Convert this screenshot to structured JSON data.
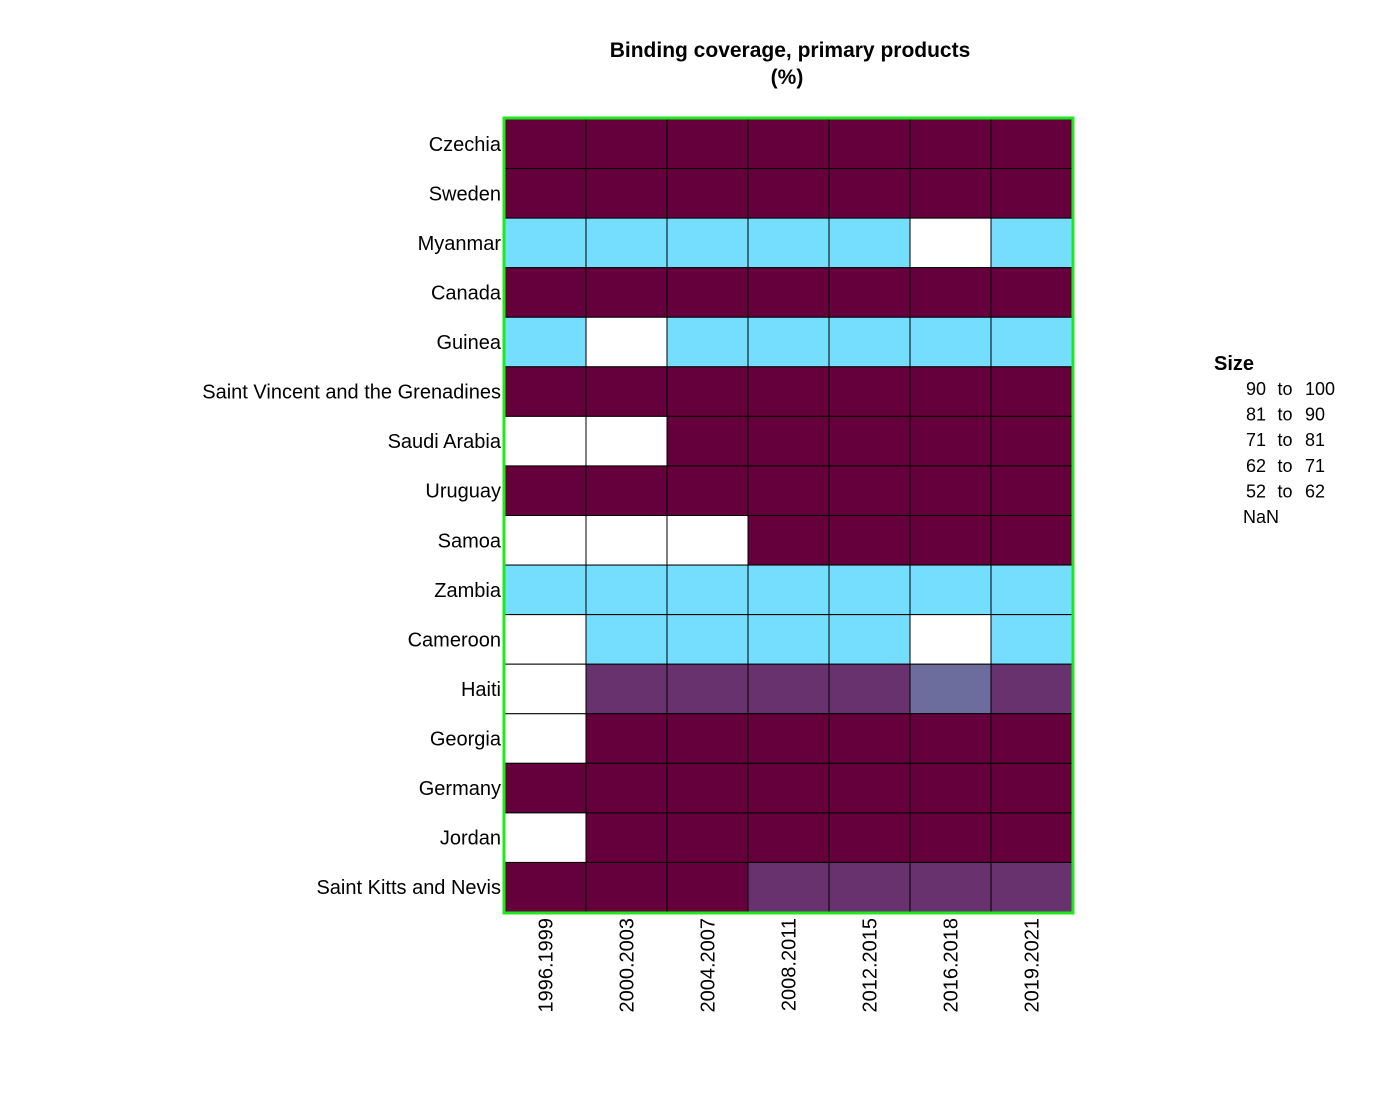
{
  "chart_data": {
    "type": "heatmap",
    "title": "Binding coverage, primary products",
    "subtitle": "(%)",
    "columns": [
      "1996.1999",
      "2000.2003",
      "2004.2007",
      "2008.2011",
      "2012.2015",
      "2016.2018",
      "2019.2021"
    ],
    "rows": [
      "Czechia",
      "Sweden",
      "Myanmar",
      "Canada",
      "Guinea",
      "Saint Vincent and the Grenadines",
      "Saudi Arabia",
      "Uruguay",
      "Samoa",
      "Zambia",
      "Cameroon",
      "Haiti",
      "Georgia",
      "Germany",
      "Jordan",
      "Saint Kitts and Nevis"
    ],
    "values": [
      [
        100,
        100,
        100,
        100,
        100,
        100,
        100
      ],
      [
        100,
        100,
        100,
        100,
        100,
        100,
        100
      ],
      [
        55,
        55,
        55,
        55,
        55,
        null,
        55
      ],
      [
        100,
        100,
        100,
        100,
        100,
        100,
        100
      ],
      [
        55,
        null,
        55,
        55,
        55,
        55,
        55
      ],
      [
        100,
        100,
        100,
        100,
        100,
        100,
        100
      ],
      [
        null,
        null,
        100,
        100,
        100,
        100,
        100
      ],
      [
        100,
        100,
        100,
        100,
        100,
        100,
        100
      ],
      [
        null,
        null,
        null,
        100,
        100,
        100,
        100
      ],
      [
        55,
        55,
        55,
        55,
        55,
        55,
        55
      ],
      [
        null,
        55,
        55,
        55,
        55,
        null,
        55
      ],
      [
        null,
        85,
        85,
        85,
        85,
        75,
        85
      ],
      [
        null,
        100,
        100,
        100,
        100,
        100,
        100
      ],
      [
        100,
        100,
        100,
        100,
        100,
        100,
        100
      ],
      [
        null,
        100,
        100,
        100,
        100,
        100,
        100
      ],
      [
        100,
        100,
        100,
        85,
        85,
        85,
        85
      ]
    ],
    "legend": {
      "title": "Size",
      "position": "right",
      "bins": [
        {
          "from": "90",
          "to": "100",
          "sep": "to",
          "min": 90,
          "max": 100,
          "color": "#66003d"
        },
        {
          "from": "81",
          "to": "90",
          "sep": "to",
          "min": 81,
          "max": 90,
          "color": "#67326e"
        },
        {
          "from": "71",
          "to": "81",
          "sep": "to",
          "min": 71,
          "max": 81,
          "color": "#6d6d9d"
        },
        {
          "from": "62",
          "to": "71",
          "sep": "to",
          "min": 62,
          "max": 71,
          "color": "#6fa7d0"
        },
        {
          "from": "52",
          "to": "62",
          "sep": "to",
          "min": 52,
          "max": 62,
          "color": "#75ddfe"
        }
      ],
      "nan_label": "NaN",
      "nan_color": "#ffffff"
    },
    "frame_color": "#1de91d",
    "cell_border_color": "#000000"
  }
}
